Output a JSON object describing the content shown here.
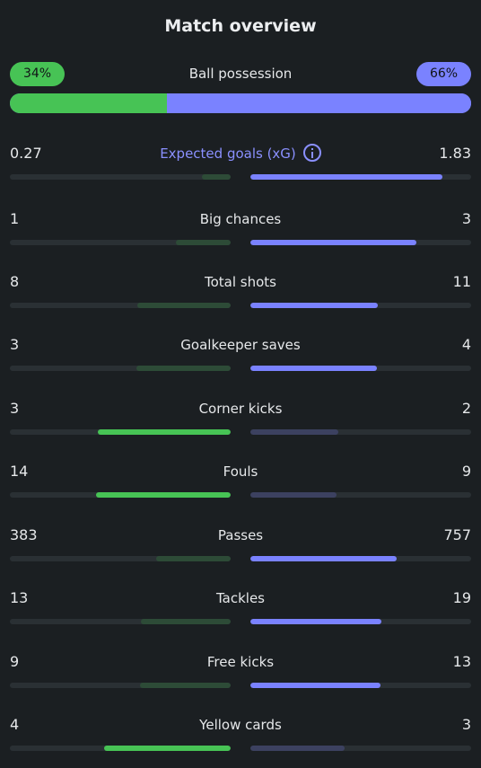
{
  "title": "Match overview",
  "possession": {
    "label": "Ball possession",
    "home": "34%",
    "away": "66%",
    "home_pct": 34,
    "away_pct": 66
  },
  "colors": {
    "home_accent": "#47c355",
    "away_accent": "#7a82ff",
    "home_muted": "#2d4b37",
    "background": "#1b1f22"
  },
  "stats": [
    {
      "label": "Expected goals (xG)",
      "home": "0.27",
      "away": "1.83",
      "home_num": 0.27,
      "away_num": 1.83,
      "info": true
    },
    {
      "label": "Big chances",
      "home": "1",
      "away": "3",
      "home_num": 1,
      "away_num": 3
    },
    {
      "label": "Total shots",
      "home": "8",
      "away": "11",
      "home_num": 8,
      "away_num": 11
    },
    {
      "label": "Goalkeeper saves",
      "home": "3",
      "away": "4",
      "home_num": 3,
      "away_num": 4
    },
    {
      "label": "Corner kicks",
      "home": "3",
      "away": "2",
      "home_num": 3,
      "away_num": 2
    },
    {
      "label": "Fouls",
      "home": "14",
      "away": "9",
      "home_num": 14,
      "away_num": 9
    },
    {
      "label": "Passes",
      "home": "383",
      "away": "757",
      "home_num": 383,
      "away_num": 757
    },
    {
      "label": "Tackles",
      "home": "13",
      "away": "19",
      "home_num": 13,
      "away_num": 19
    },
    {
      "label": "Free kicks",
      "home": "9",
      "away": "13",
      "home_num": 9,
      "away_num": 13
    },
    {
      "label": "Yellow cards",
      "home": "4",
      "away": "3",
      "home_num": 4,
      "away_num": 3
    }
  ]
}
